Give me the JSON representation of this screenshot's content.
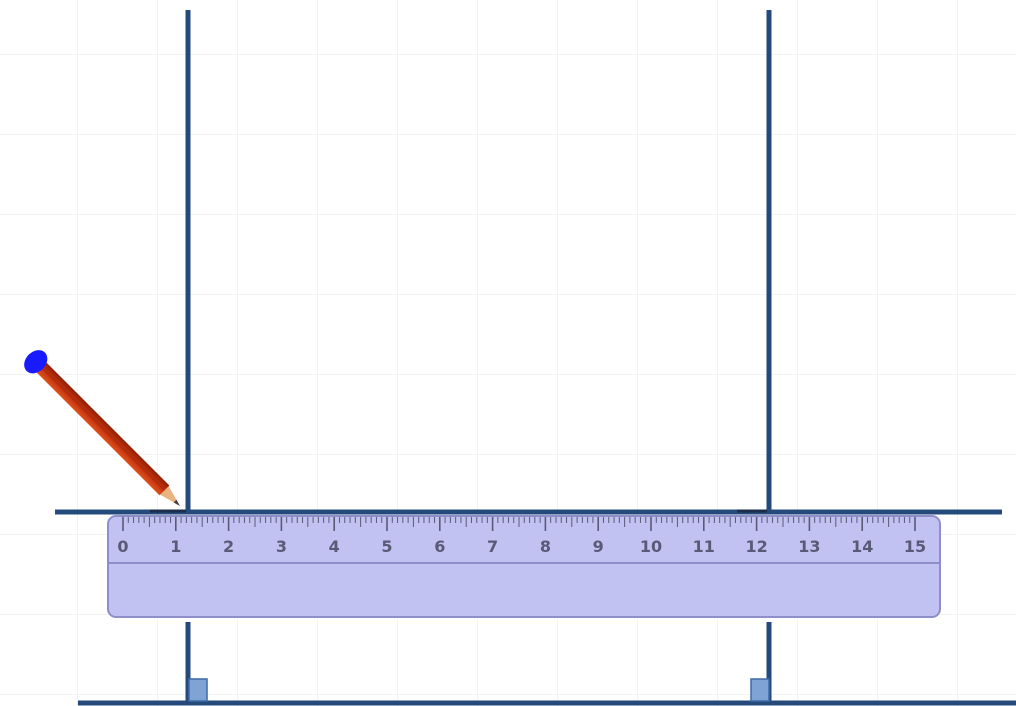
{
  "canvas": {
    "background": "#ffffff",
    "grid_color": "#f1f3f7",
    "line_color": "#244a7c",
    "right_angle_marker_color": "#7fa3d4"
  },
  "ruler": {
    "fill": "#c1c2f1",
    "border": "#8e8fc8",
    "tick_color": "#5a5a78",
    "labels": [
      "0",
      "1",
      "2",
      "3",
      "4",
      "5",
      "6",
      "7",
      "8",
      "9",
      "10",
      "11",
      "12",
      "13",
      "14",
      "15"
    ],
    "minor_ticks_per_unit": 10
  },
  "pencil": {
    "icon": "pencil-icon",
    "body_color": "#c2320e",
    "eraser_color": "#1a1aff",
    "tip_color": "#e8b37e"
  },
  "constructions": {
    "perpendicular_lines": 2,
    "right_angle_markers": 2
  }
}
